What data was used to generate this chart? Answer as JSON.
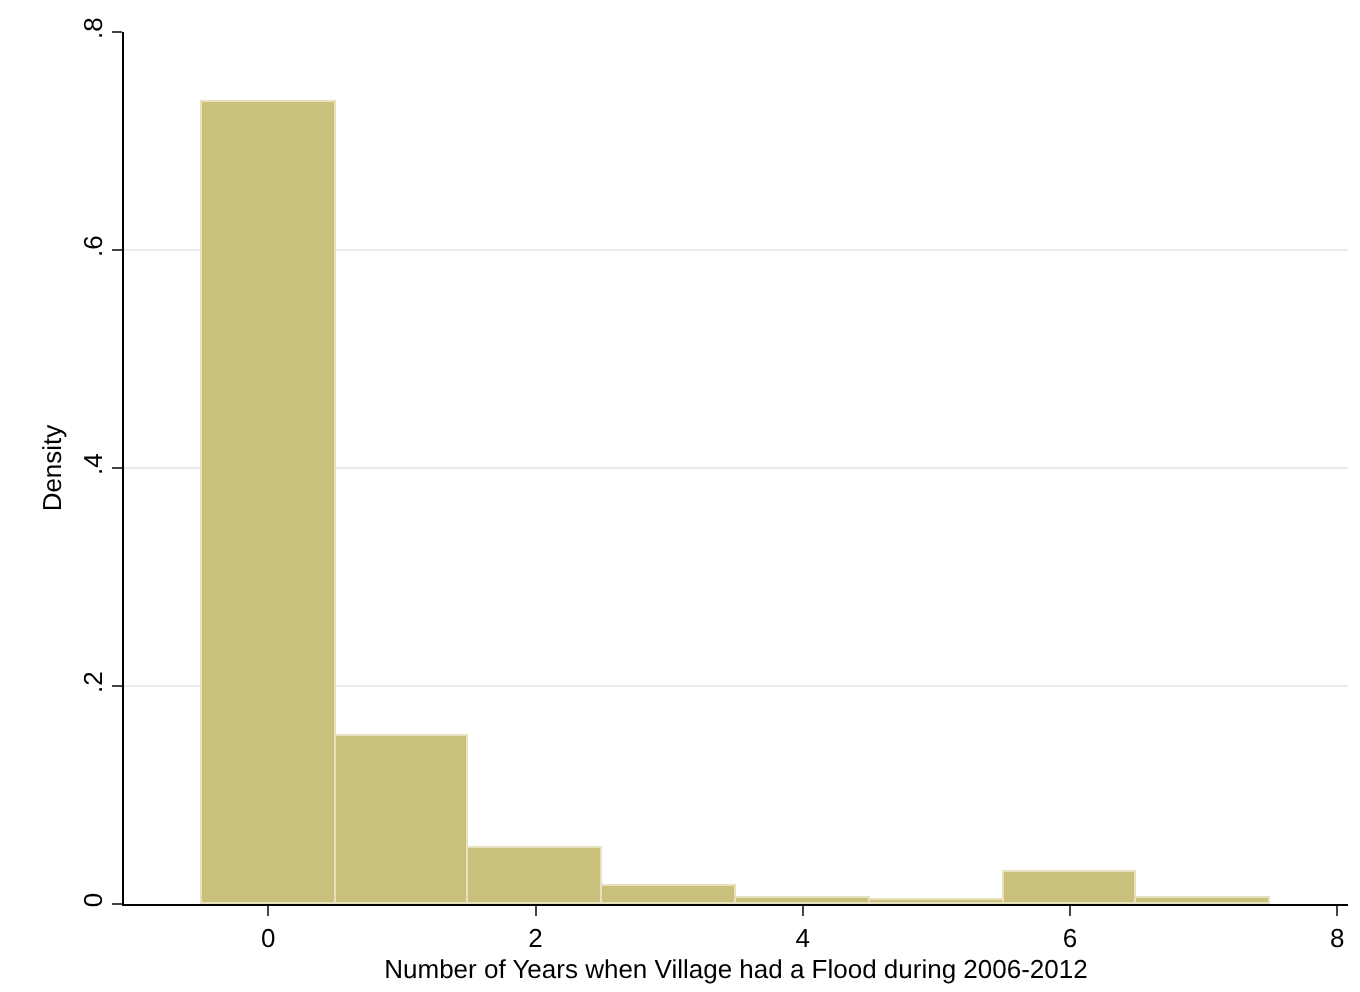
{
  "chart_data": {
    "type": "histogram",
    "xlabel": "Number of Years when Village had a Flood during 2006-2012",
    "ylabel": "Density",
    "bins": [
      -0.5,
      0.5,
      1.5,
      2.5,
      3.5,
      4.5,
      5.5,
      6.5,
      7.5
    ],
    "values": [
      0.735,
      0.155,
      0.052,
      0.017,
      0.006,
      0.004,
      0.029,
      0.006
    ],
    "color": "#c9c07c",
    "xlim": [
      -1.08,
      8.08
    ],
    "xticks": [
      0,
      2,
      4,
      6,
      8
    ],
    "ylim": [
      0,
      0.8
    ],
    "yticks": [
      0,
      {
        "value": 0.2,
        "label": ".2"
      },
      {
        "value": 0.4,
        "label": ".4"
      },
      {
        "value": 0.6,
        "label": ".6"
      },
      {
        "value": 0.8,
        "label": ".8"
      }
    ],
    "grid": "y"
  }
}
